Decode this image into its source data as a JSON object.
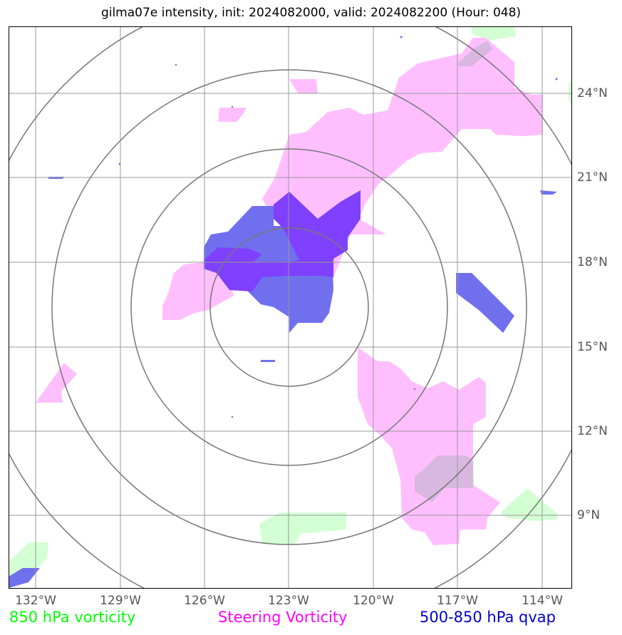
{
  "title": "gilma07e intensity, init: 2024082000, valid: 2024082200 (Hour: 048)",
  "x_ticks": [
    "132°W",
    "129°W",
    "126°W",
    "123°W",
    "120°W",
    "117°W",
    "114°W"
  ],
  "y_ticks": [
    "24°N",
    "21°N",
    "18°N",
    "15°N",
    "12°N",
    "9°N"
  ],
  "legend": [
    {
      "label": "850 hPa vorticity",
      "color": "#00ff00"
    },
    {
      "label": "Steering Vorticity",
      "color": "#ff00ff"
    },
    {
      "label": "500-850 hPa qvap",
      "color": "#0000cc"
    }
  ],
  "colors": {
    "vort850_fill": "#ccffcc",
    "steering_fill": "#ffbfff",
    "qvap_fill": "#7070ee",
    "overlap_fill": "#8040ff",
    "range_rings": "#777777",
    "gridlines": "#999999"
  },
  "range_rings_center": {
    "lon": -123.0,
    "lat": 16.5
  }
}
